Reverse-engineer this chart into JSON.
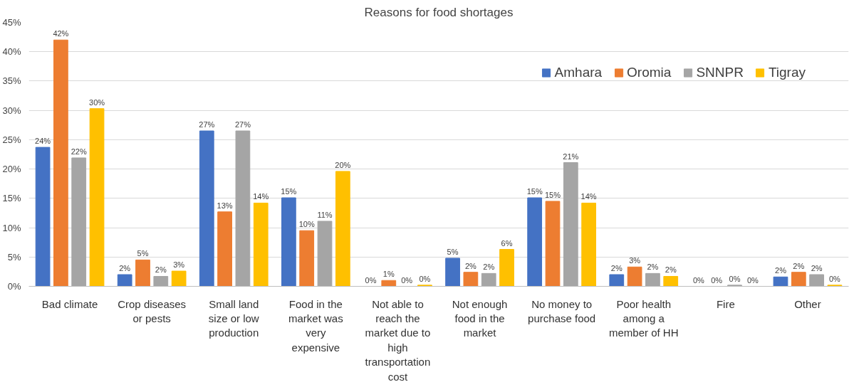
{
  "chart_data": {
    "type": "bar",
    "title": "Reasons for food shortages",
    "categories": [
      "Bad climate",
      "Crop diseases or pests",
      "Small land size or low production",
      "Food in the market was very expensive",
      "Not able to reach the market due to high transportation cost",
      "Not enough food in the market",
      "No money to purchase food",
      "Poor health among a member of HH",
      "Fire",
      "Other"
    ],
    "series": [
      {
        "name": "Amhara",
        "color": "#4472c4",
        "values": [
          23.7,
          2.0,
          26.5,
          15.1,
          0,
          4.8,
          15.1,
          2.0,
          0,
          1.6
        ],
        "value_labels": [
          "24%",
          "2%",
          "27%",
          "15%",
          "0%",
          "5%",
          "15%",
          "2%",
          "0%",
          "2%"
        ]
      },
      {
        "name": "Oromia",
        "color": "#ed7d31",
        "values": [
          42.0,
          4.5,
          12.7,
          9.5,
          1.0,
          2.4,
          14.5,
          3.3,
          0,
          2.4
        ],
        "value_labels": [
          "42%",
          "5%",
          "13%",
          "10%",
          "1%",
          "2%",
          "15%",
          "3%",
          "0%",
          "2%"
        ]
      },
      {
        "name": "SNNPR",
        "color": "#a5a5a5",
        "values": [
          21.9,
          1.7,
          26.5,
          11.1,
          0,
          2.2,
          21.1,
          2.2,
          0.2,
          2.0
        ],
        "value_labels": [
          "22%",
          "2%",
          "27%",
          "11%",
          "0%",
          "2%",
          "21%",
          "2%",
          "0%",
          "2%"
        ]
      },
      {
        "name": "Tigray",
        "color": "#ffc000",
        "values": [
          30.3,
          2.6,
          14.2,
          19.6,
          0.2,
          6.3,
          14.2,
          1.7,
          0,
          0.2
        ],
        "value_labels": [
          "30%",
          "3%",
          "14%",
          "20%",
          "0%",
          "6%",
          "14%",
          "2%",
          "0%",
          "0%"
        ]
      }
    ],
    "ylim": [
      0,
      45
    ],
    "yticks": [
      {
        "value": 0,
        "label": "0%"
      },
      {
        "value": 5,
        "label": "5%"
      },
      {
        "value": 10,
        "label": "10%"
      },
      {
        "value": 15,
        "label": "15%"
      },
      {
        "value": 20,
        "label": "20%"
      },
      {
        "value": 25,
        "label": "25%"
      },
      {
        "value": 30,
        "label": "30%"
      },
      {
        "value": 35,
        "label": "35%"
      },
      {
        "value": 40,
        "label": "40%"
      },
      {
        "value": 45,
        "label": "45%"
      }
    ],
    "grid": "y",
    "legend": "top right"
  }
}
